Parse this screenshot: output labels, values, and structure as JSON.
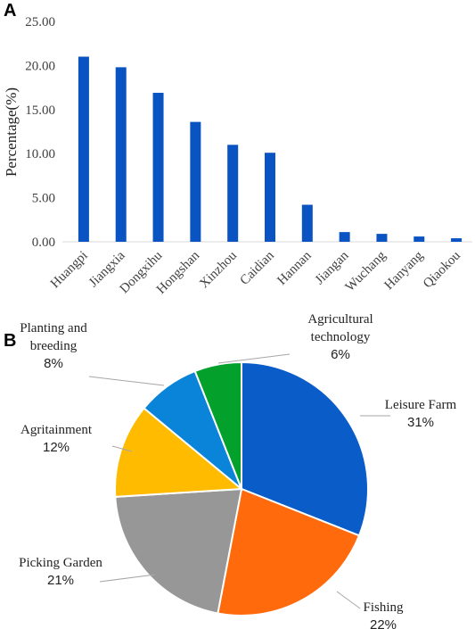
{
  "panel_a_letter": "A",
  "panel_b_letter": "B",
  "chart_data": [
    {
      "type": "bar",
      "title": "",
      "ylabel": "Percentage(%)",
      "xlabel": "",
      "categories": [
        "Huangpi",
        "Jiangxia",
        "Dongxihu",
        "Hongshan",
        "Xinzhou",
        "Caidian",
        "Hannan",
        "Jiangan",
        "Wuchang",
        "Hanyang",
        "Qiaokou"
      ],
      "values": [
        21.0,
        19.8,
        16.9,
        13.6,
        11.0,
        10.1,
        4.2,
        1.1,
        0.9,
        0.6,
        0.4
      ],
      "ylim": [
        0,
        25
      ],
      "yticks": [
        "0.00",
        "5.00",
        "10.00",
        "15.00",
        "20.00",
        "25.00"
      ],
      "grid": false,
      "color": "#0a53c2"
    },
    {
      "type": "pie",
      "title": "",
      "slices": [
        {
          "name_lines": [
            "Leisure Farm"
          ],
          "percent_label": "31%",
          "value": 31,
          "color": "#0a5cc8"
        },
        {
          "name_lines": [
            "Fishing"
          ],
          "percent_label": "22%",
          "value": 22,
          "color": "#ff6a0d"
        },
        {
          "name_lines": [
            "Picking Garden"
          ],
          "percent_label": "21%",
          "value": 21,
          "color": "#979797"
        },
        {
          "name_lines": [
            "Agritainment"
          ],
          "percent_label": "12%",
          "value": 12,
          "color": "#ffbb00"
        },
        {
          "name_lines": [
            "Planting and",
            "breeding"
          ],
          "percent_label": "8%",
          "value": 8,
          "color": "#0a84d8"
        },
        {
          "name_lines": [
            "Agricultural",
            "technology"
          ],
          "percent_label": "6%",
          "value": 6,
          "color": "#03a02c"
        }
      ]
    }
  ]
}
